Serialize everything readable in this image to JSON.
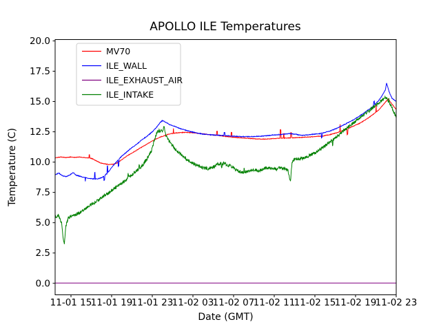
{
  "window": {
    "title": "APOLLO ILE Temperatures"
  },
  "chart_data": {
    "type": "line",
    "title": "APOLLO ILE Temperatures",
    "xlabel": "Date (GMT)",
    "ylabel": "Temperature (C)",
    "x_unit": "hours since 11-01 00:00 GMT (24 + h = 11-02 h)",
    "xlim": [
      13.44,
      47.0
    ],
    "ylim": [
      -0.95,
      20.11
    ],
    "grid": false,
    "legend_position": "upper left",
    "frame_color": "#000000",
    "legend_border_color": "#cccccc",
    "background": "#ffffff",
    "x_ticks": [
      {
        "value": 15,
        "label": "11-01 15"
      },
      {
        "value": 19,
        "label": "11-01 19"
      },
      {
        "value": 23,
        "label": "11-01 23"
      },
      {
        "value": 27,
        "label": "11-02 03"
      },
      {
        "value": 31,
        "label": "11-02 07"
      },
      {
        "value": 35,
        "label": "11-02 11"
      },
      {
        "value": 39,
        "label": "11-02 15"
      },
      {
        "value": 43,
        "label": "11-02 19"
      },
      {
        "value": 47,
        "label": "11-02 23"
      }
    ],
    "y_ticks": [
      {
        "value": 0,
        "label": "0.0"
      },
      {
        "value": 2.5,
        "label": "2.5"
      },
      {
        "value": 5,
        "label": "5.0"
      },
      {
        "value": 7.5,
        "label": "7.5"
      },
      {
        "value": 10,
        "label": "10.0"
      },
      {
        "value": 12.5,
        "label": "12.5"
      },
      {
        "value": 15,
        "label": "15.0"
      },
      {
        "value": 17.5,
        "label": "17.5"
      },
      {
        "value": 20,
        "label": "20.0"
      }
    ],
    "series": [
      {
        "name": "MV70",
        "color": "#ff0000",
        "noise": 0.025,
        "spike_amp": 0.45,
        "spike_prob": 0.01,
        "points": [
          [
            13.45,
            10.35
          ],
          [
            14.0,
            10.42
          ],
          [
            14.5,
            10.38
          ],
          [
            15.0,
            10.42
          ],
          [
            15.4,
            10.38
          ],
          [
            15.8,
            10.42
          ],
          [
            16.3,
            10.38
          ],
          [
            16.7,
            10.34
          ],
          [
            17.1,
            10.28
          ],
          [
            17.5,
            10.1
          ],
          [
            17.9,
            9.94
          ],
          [
            18.3,
            9.85
          ],
          [
            18.8,
            9.8
          ],
          [
            19.2,
            9.83
          ],
          [
            19.6,
            9.96
          ],
          [
            20.0,
            10.2
          ],
          [
            20.4,
            10.45
          ],
          [
            20.9,
            10.7
          ],
          [
            21.4,
            10.95
          ],
          [
            21.9,
            11.2
          ],
          [
            22.4,
            11.45
          ],
          [
            22.9,
            11.7
          ],
          [
            23.4,
            11.92
          ],
          [
            23.9,
            12.1
          ],
          [
            24.4,
            12.25
          ],
          [
            24.9,
            12.35
          ],
          [
            25.5,
            12.42
          ],
          [
            26.2,
            12.45
          ],
          [
            27.0,
            12.42
          ],
          [
            27.8,
            12.35
          ],
          [
            28.6,
            12.27
          ],
          [
            29.4,
            12.2
          ],
          [
            30.2,
            12.12
          ],
          [
            31.0,
            12.05
          ],
          [
            31.8,
            12.0
          ],
          [
            32.6,
            11.95
          ],
          [
            33.4,
            11.9
          ],
          [
            34.2,
            11.9
          ],
          [
            35.0,
            11.94
          ],
          [
            35.8,
            11.98
          ],
          [
            36.6,
            12.0
          ],
          [
            37.4,
            12.02
          ],
          [
            38.2,
            12.06
          ],
          [
            39.0,
            12.1
          ],
          [
            39.8,
            12.16
          ],
          [
            40.4,
            12.25
          ],
          [
            41.0,
            12.38
          ],
          [
            41.6,
            12.55
          ],
          [
            42.2,
            12.75
          ],
          [
            42.8,
            12.97
          ],
          [
            43.4,
            13.2
          ],
          [
            44.0,
            13.5
          ],
          [
            44.6,
            13.85
          ],
          [
            45.2,
            14.25
          ],
          [
            45.7,
            14.7
          ],
          [
            46.0,
            15.0
          ],
          [
            46.2,
            15.2
          ],
          [
            46.5,
            14.9
          ],
          [
            46.75,
            14.6
          ],
          [
            47.0,
            14.35
          ]
        ]
      },
      {
        "name": "ILE_WALL",
        "color": "#0000ff",
        "noise": 0.03,
        "spike_amp": 0.4,
        "spike_prob": 0.01,
        "points": [
          [
            13.45,
            8.95
          ],
          [
            13.8,
            9.1
          ],
          [
            14.1,
            8.9
          ],
          [
            14.5,
            8.8
          ],
          [
            14.9,
            8.95
          ],
          [
            15.2,
            9.15
          ],
          [
            15.5,
            8.92
          ],
          [
            16.0,
            8.8
          ],
          [
            16.5,
            8.7
          ],
          [
            17.0,
            8.63
          ],
          [
            17.6,
            8.6
          ],
          [
            18.1,
            8.75
          ],
          [
            18.6,
            9.1
          ],
          [
            19.0,
            9.55
          ],
          [
            19.5,
            10.05
          ],
          [
            20.0,
            10.5
          ],
          [
            20.5,
            10.85
          ],
          [
            21.0,
            11.2
          ],
          [
            21.5,
            11.5
          ],
          [
            22.0,
            11.85
          ],
          [
            22.5,
            12.15
          ],
          [
            23.0,
            12.5
          ],
          [
            23.4,
            12.85
          ],
          [
            23.8,
            13.3
          ],
          [
            24.0,
            13.42
          ],
          [
            24.3,
            13.3
          ],
          [
            24.7,
            13.1
          ],
          [
            25.2,
            12.95
          ],
          [
            25.8,
            12.75
          ],
          [
            26.4,
            12.6
          ],
          [
            27.1,
            12.45
          ],
          [
            27.9,
            12.32
          ],
          [
            28.8,
            12.25
          ],
          [
            29.8,
            12.2
          ],
          [
            30.8,
            12.15
          ],
          [
            31.8,
            12.1
          ],
          [
            32.8,
            12.1
          ],
          [
            33.8,
            12.15
          ],
          [
            34.5,
            12.2
          ],
          [
            35.2,
            12.25
          ],
          [
            35.9,
            12.3
          ],
          [
            36.5,
            12.35
          ],
          [
            37.1,
            12.3
          ],
          [
            37.7,
            12.2
          ],
          [
            38.3,
            12.25
          ],
          [
            38.9,
            12.3
          ],
          [
            39.5,
            12.35
          ],
          [
            40.0,
            12.45
          ],
          [
            40.6,
            12.6
          ],
          [
            41.2,
            12.8
          ],
          [
            41.9,
            13.1
          ],
          [
            42.6,
            13.4
          ],
          [
            43.3,
            13.75
          ],
          [
            44.0,
            14.15
          ],
          [
            44.7,
            14.6
          ],
          [
            45.2,
            15.0
          ],
          [
            45.6,
            15.45
          ],
          [
            45.95,
            16.0
          ],
          [
            46.05,
            16.55
          ],
          [
            46.3,
            15.8
          ],
          [
            46.6,
            15.25
          ],
          [
            47.0,
            15.0
          ]
        ]
      },
      {
        "name": "ILE_EXHAUST_AIR",
        "color": "#800080",
        "noise": 0,
        "spike_amp": 0,
        "spike_prob": 0,
        "points": [
          [
            13.45,
            0.02
          ],
          [
            47.0,
            0.02
          ]
        ]
      },
      {
        "name": "ILE_INTAKE",
        "color": "#008000",
        "noise": 0.13,
        "spike_amp": 0.25,
        "spike_prob": 0.006,
        "points": [
          [
            13.45,
            5.6
          ],
          [
            13.6,
            5.35
          ],
          [
            13.75,
            5.65
          ],
          [
            13.95,
            5.2
          ],
          [
            14.1,
            4.9
          ],
          [
            14.25,
            3.6
          ],
          [
            14.35,
            3.25
          ],
          [
            14.5,
            4.7
          ],
          [
            14.7,
            5.35
          ],
          [
            15.0,
            5.5
          ],
          [
            15.5,
            5.65
          ],
          [
            16.0,
            5.9
          ],
          [
            16.5,
            6.2
          ],
          [
            17.0,
            6.5
          ],
          [
            17.5,
            6.75
          ],
          [
            18.0,
            7.05
          ],
          [
            18.5,
            7.35
          ],
          [
            19.0,
            7.65
          ],
          [
            19.5,
            7.95
          ],
          [
            20.0,
            8.25
          ],
          [
            20.5,
            8.6
          ],
          [
            21.0,
            8.95
          ],
          [
            21.5,
            9.3
          ],
          [
            22.0,
            9.7
          ],
          [
            22.5,
            10.3
          ],
          [
            22.9,
            10.9
          ],
          [
            23.1,
            11.5
          ],
          [
            23.3,
            12.1
          ],
          [
            23.5,
            12.5
          ],
          [
            23.7,
            12.6
          ],
          [
            23.9,
            12.55
          ],
          [
            24.05,
            12.5
          ],
          [
            24.15,
            13.0
          ],
          [
            24.25,
            12.4
          ],
          [
            24.5,
            11.9
          ],
          [
            24.8,
            11.55
          ],
          [
            25.2,
            11.1
          ],
          [
            25.6,
            10.8
          ],
          [
            26.0,
            10.5
          ],
          [
            26.5,
            10.15
          ],
          [
            27.0,
            9.9
          ],
          [
            27.5,
            9.7
          ],
          [
            28.0,
            9.5
          ],
          [
            28.5,
            9.45
          ],
          [
            29.0,
            9.6
          ],
          [
            29.5,
            9.85
          ],
          [
            30.0,
            9.9
          ],
          [
            30.5,
            9.75
          ],
          [
            31.0,
            9.5
          ],
          [
            31.5,
            9.25
          ],
          [
            32.0,
            9.15
          ],
          [
            32.5,
            9.25
          ],
          [
            33.0,
            9.4
          ],
          [
            33.5,
            9.3
          ],
          [
            34.0,
            9.45
          ],
          [
            34.5,
            9.5
          ],
          [
            35.0,
            9.4
          ],
          [
            35.5,
            9.5
          ],
          [
            36.0,
            9.45
          ],
          [
            36.35,
            9.4
          ],
          [
            36.5,
            8.6
          ],
          [
            36.6,
            8.45
          ],
          [
            36.75,
            10.0
          ],
          [
            37.0,
            10.25
          ],
          [
            37.5,
            10.3
          ],
          [
            38.0,
            10.35
          ],
          [
            38.5,
            10.55
          ],
          [
            39.0,
            10.75
          ],
          [
            39.5,
            11.05
          ],
          [
            40.0,
            11.35
          ],
          [
            40.5,
            11.65
          ],
          [
            41.0,
            12.0
          ],
          [
            41.5,
            12.35
          ],
          [
            42.0,
            12.7
          ],
          [
            42.5,
            13.05
          ],
          [
            43.0,
            13.4
          ],
          [
            43.5,
            13.7
          ],
          [
            44.0,
            14.0
          ],
          [
            44.5,
            14.35
          ],
          [
            45.0,
            14.7
          ],
          [
            45.4,
            14.95
          ],
          [
            45.7,
            15.15
          ],
          [
            45.9,
            15.3
          ],
          [
            46.1,
            15.25
          ],
          [
            46.4,
            14.8
          ],
          [
            46.7,
            14.25
          ],
          [
            47.0,
            13.65
          ]
        ]
      }
    ]
  }
}
